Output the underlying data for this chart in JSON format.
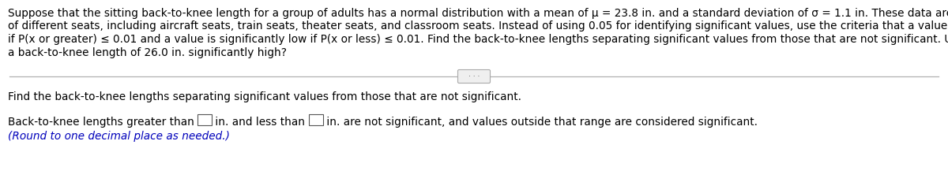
{
  "background_color": "#ffffff",
  "paragraph_text_lines": [
    "Suppose that the sitting back-to-knee length for a group of adults has a normal distribution with a mean of μ = 23.8 in. and a standard deviation of σ = 1.1 in. These data are often used in the design",
    "of different seats, including aircraft seats, train seats, theater seats, and classroom seats. Instead of using 0.05 for identifying significant values, use the criteria that a value x is significantly high",
    "if P(x or greater) ≤ 0.01 and a value is significantly low if P(x or less) ≤ 0.01. Find the back-to-knee lengths separating significant values from those that are not significant. Using these criteria, is",
    "a back-to-knee length of 26.0 in. significantly high?"
  ],
  "question_text": "Find the back-to-knee lengths separating significant values from those that are not significant.",
  "answer_pre": "Back-to-knee lengths greater than ",
  "answer_mid": " in. and less than ",
  "answer_post": " in. are not significant, and values outside that range are considered significant.",
  "note_text": "(Round to one decimal place as needed.)",
  "note_color": "#0000bb",
  "para_fontsize": 9.8,
  "q_fontsize": 9.8,
  "ans_fontsize": 9.8,
  "note_fontsize": 9.8,
  "fig_width": 12.0,
  "fig_height": 2.32,
  "dpi": 100
}
